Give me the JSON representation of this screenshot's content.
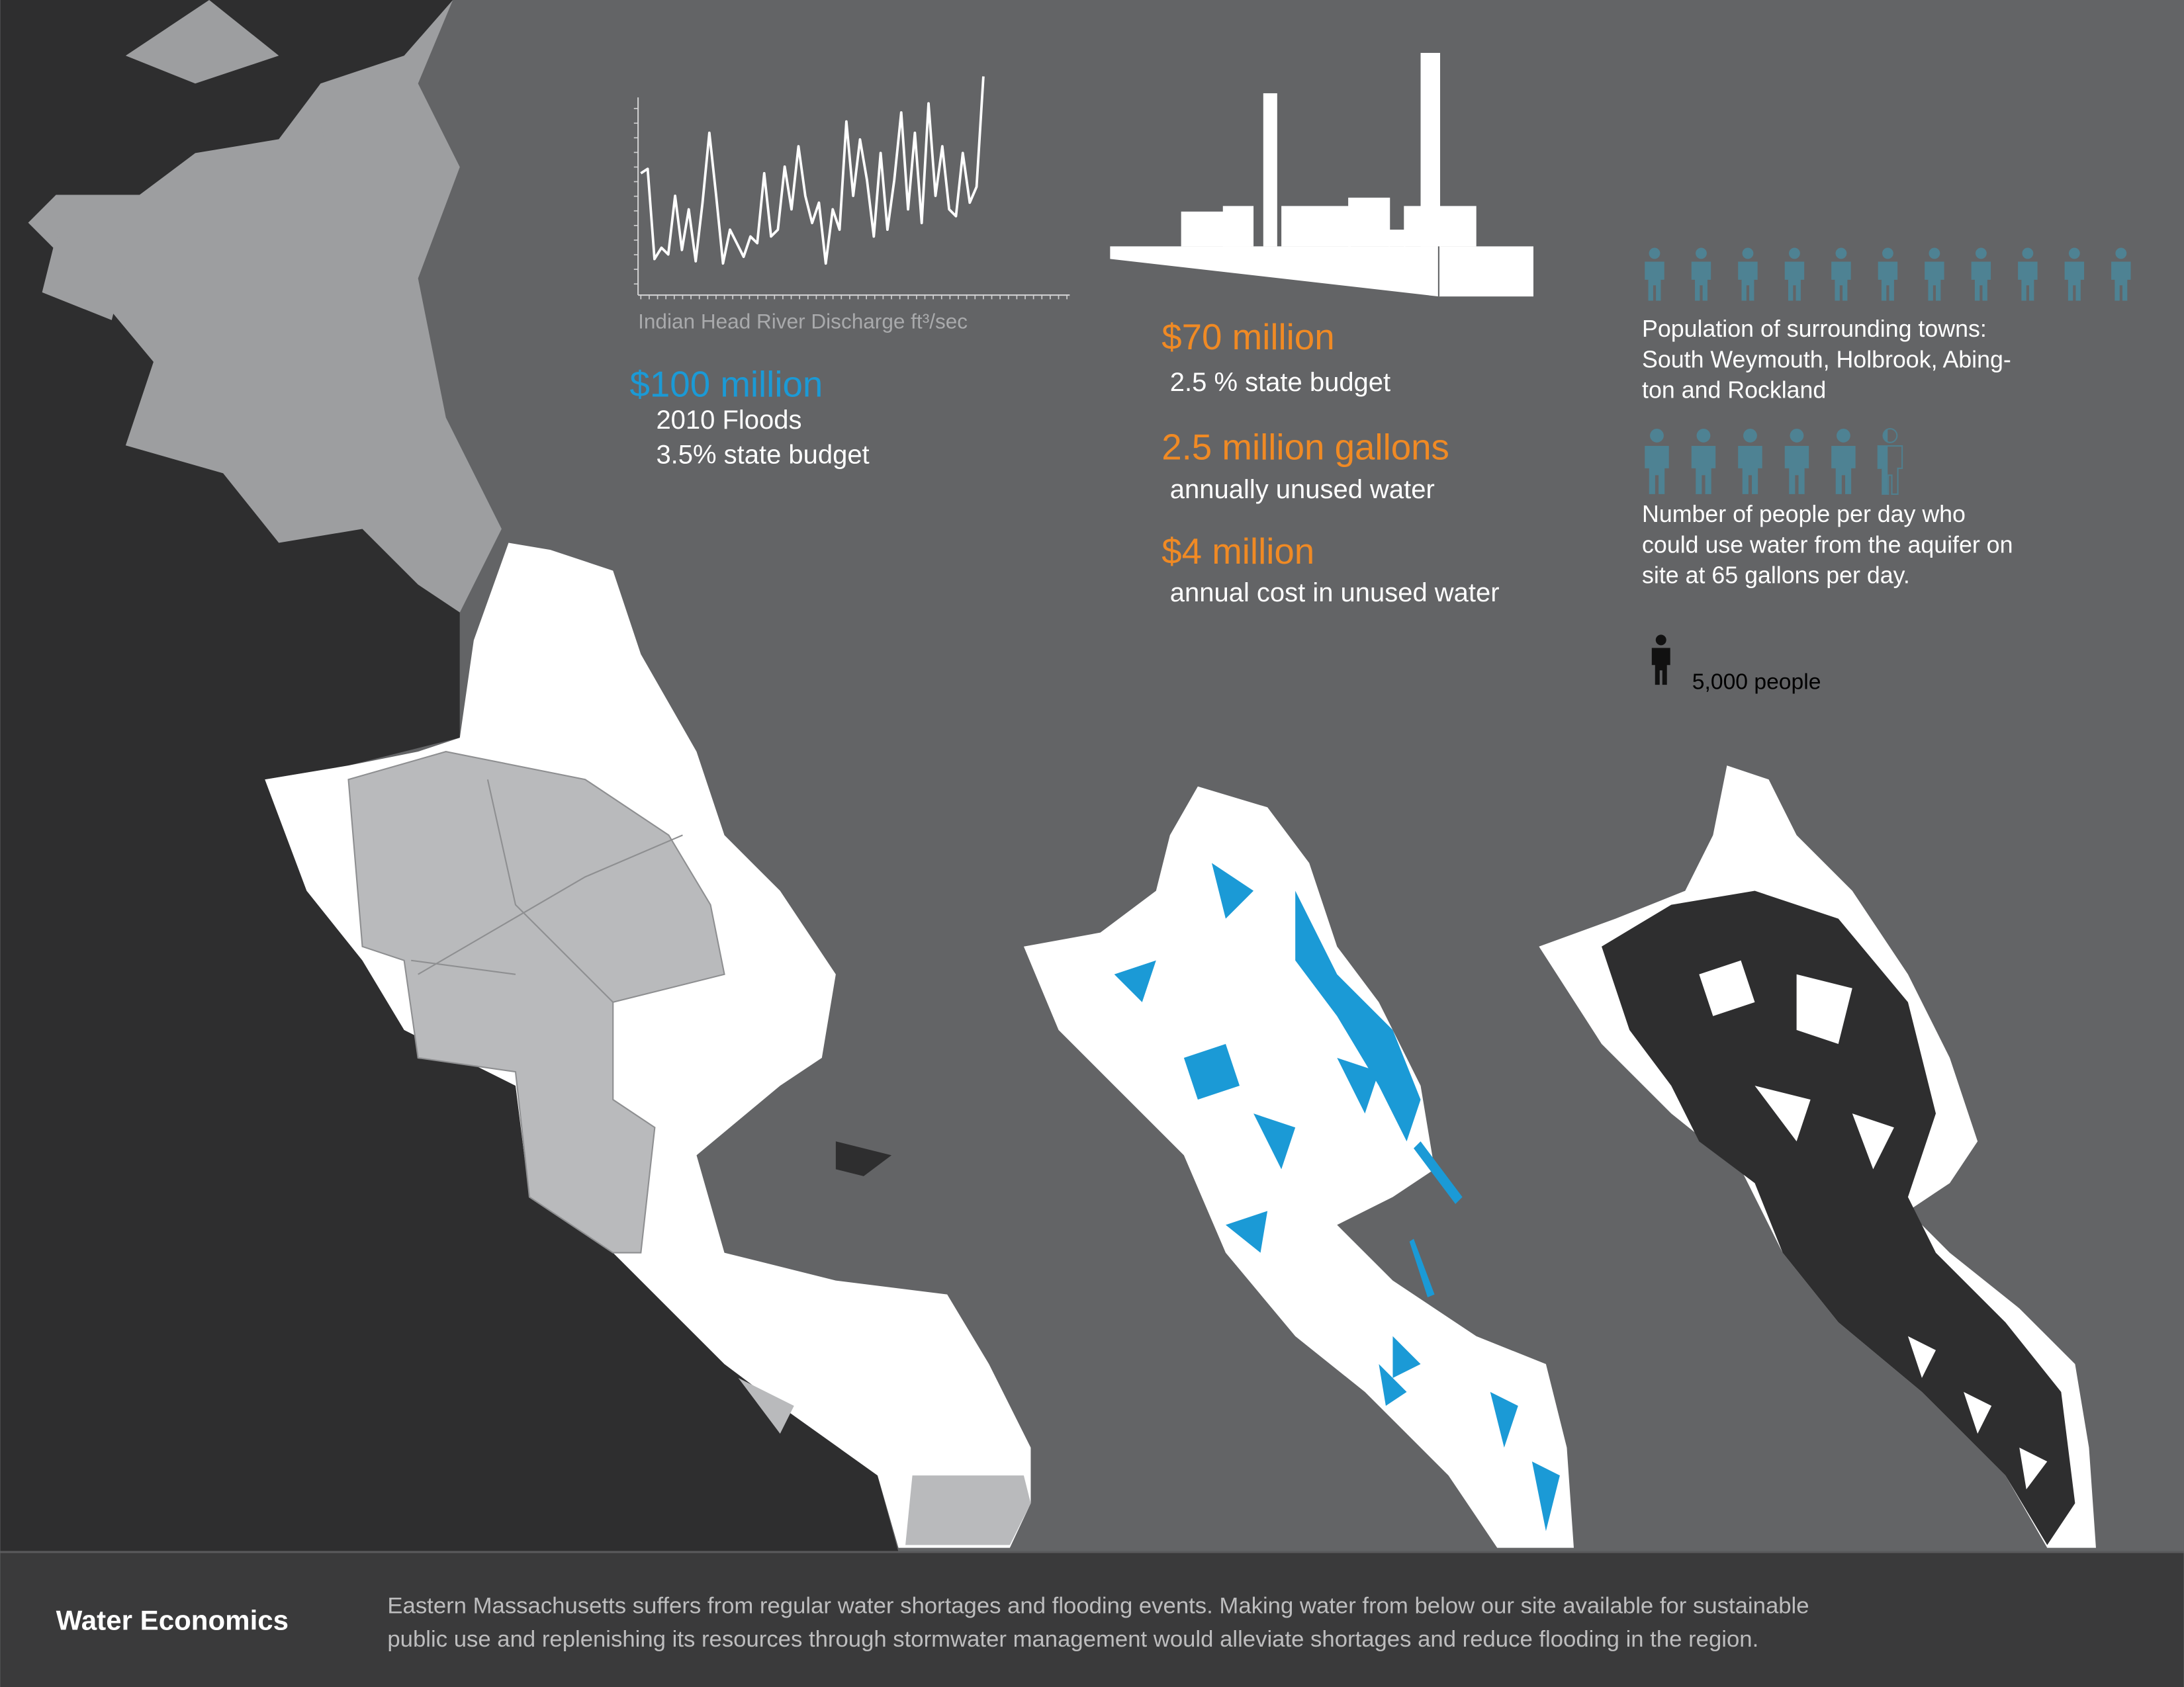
{
  "discharge_chart": {
    "type": "line",
    "caption": "Indian Head River Discharge ft³/sec",
    "values": [
      54,
      56,
      16,
      21,
      18,
      44,
      20,
      38,
      15,
      41,
      72,
      44,
      14,
      29,
      23,
      17,
      26,
      23,
      54,
      26,
      29,
      57,
      38,
      66,
      44,
      32,
      41,
      14,
      38,
      29,
      77,
      44,
      69,
      51,
      26,
      63,
      29,
      51,
      81,
      38,
      72,
      32,
      85,
      44,
      66,
      38,
      35,
      63,
      41,
      48,
      97
    ],
    "ylim": [
      0,
      100
    ],
    "color": "#ffffff"
  },
  "floods": {
    "amount": "$100 million",
    "lines": [
      "2010 Floods",
      "3.5% state budget"
    ]
  },
  "costs": [
    {
      "amount": "$70 million",
      "note": "2.5 % state budget"
    },
    {
      "amount": "2.5 million gallons",
      "note": "annually unused water"
    },
    {
      "amount": "$4 million",
      "note": "annual cost in unused water"
    }
  ],
  "icons": {
    "population": 11,
    "population_text": [
      "Population of surrounding towns:",
      "South Weymouth, Holbrook, Abing-",
      "ton and Rockland"
    ],
    "aquifer_users": 5.4,
    "aquifer_text": [
      "Number of people per day who",
      "could use water from the aquifer on",
      "site at 65 gallons per day."
    ],
    "legend": "5,000 people",
    "color": "#4e8293"
  },
  "footer": {
    "title": "Water Economics",
    "lines": [
      "Eastern Massachusetts suffers from regular water shortages and flooding events. Making water from below our site available for sustainable",
      "public use and replenishing its resources through stormwater management would alleviate shortages and reduce flooding in the region."
    ]
  }
}
